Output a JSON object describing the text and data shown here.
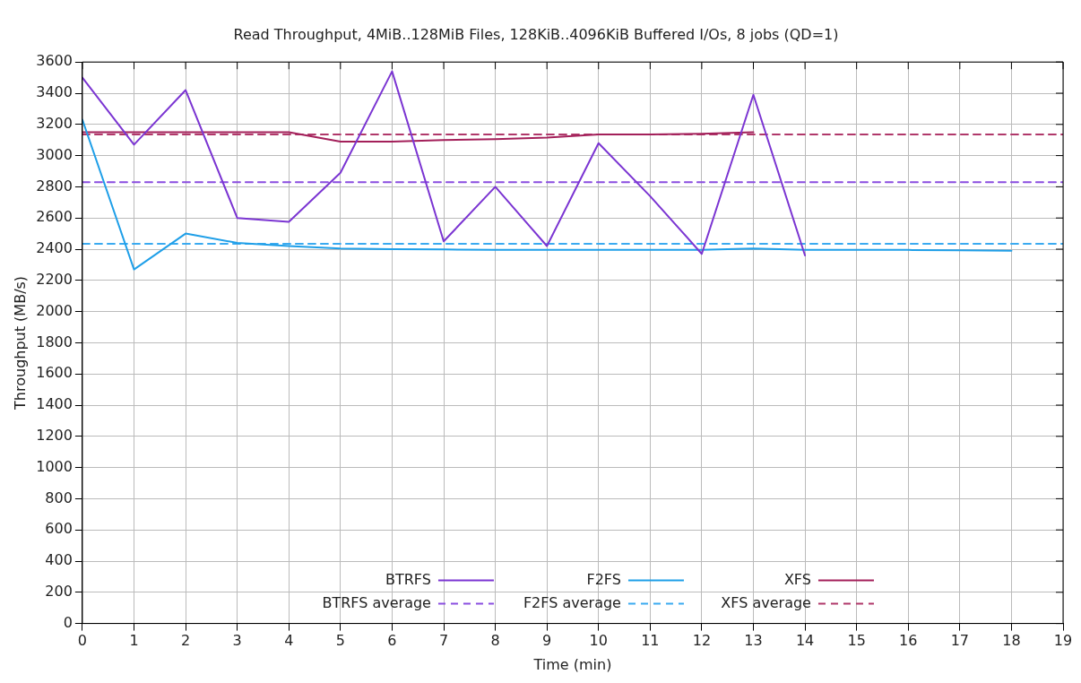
{
  "chart_data": {
    "type": "line",
    "title": "Read Throughput, 4MiB..128MiB Files, 128KiB..4096KiB Buffered I/Os, 8 jobs (QD=1)",
    "xlabel": "Time (min)",
    "ylabel": "Throughput (MB/s)",
    "xlim": [
      0,
      19
    ],
    "xticks": [
      0,
      1,
      2,
      3,
      4,
      5,
      6,
      7,
      8,
      9,
      10,
      11,
      12,
      13,
      14,
      15,
      16,
      17,
      18,
      19
    ],
    "ylim": [
      0,
      3600
    ],
    "yticks": [
      0,
      200,
      400,
      600,
      800,
      1000,
      1200,
      1400,
      1600,
      1800,
      2000,
      2200,
      2400,
      2600,
      2800,
      3000,
      3200,
      3400,
      3600
    ],
    "grid": true,
    "legend": "bottom",
    "marker": "none",
    "line_style": "solid",
    "series": [
      {
        "name": "BTRFS",
        "color": "#7b35d2",
        "x": [
          0,
          1,
          2,
          3,
          4,
          5,
          6,
          7,
          8,
          9,
          10,
          11,
          12,
          13,
          14
        ],
        "values": [
          3500,
          3070,
          3420,
          2600,
          2575,
          2890,
          3540,
          2450,
          2800,
          2420,
          3080,
          2740,
          2370,
          3390,
          2360
        ]
      },
      {
        "name": "BTRFS average",
        "color": "#8a4ee0",
        "line_style": "dashed",
        "x": [
          0,
          19
        ],
        "values": [
          2830,
          2830
        ]
      },
      {
        "name": "F2FS",
        "color": "#1f9fe8",
        "x": [
          0,
          1,
          2,
          3,
          4,
          5,
          6,
          7,
          8,
          9,
          10,
          11,
          12,
          13,
          14,
          15,
          16,
          17,
          18
        ],
        "values": [
          3230,
          2270,
          2500,
          2440,
          2420,
          2405,
          2400,
          2398,
          2396,
          2395,
          2395,
          2395,
          2395,
          2405,
          2395,
          2395,
          2395,
          2393,
          2390
        ]
      },
      {
        "name": "F2FS average",
        "color": "#3aaaf0",
        "line_style": "dashed",
        "x": [
          0,
          19
        ],
        "values": [
          2435,
          2435
        ]
      },
      {
        "name": "XFS",
        "color": "#a3205a",
        "x": [
          0,
          1,
          2,
          3,
          4,
          5,
          6,
          7,
          8,
          9,
          10,
          11,
          12,
          13
        ],
        "values": [
          3150,
          3150,
          3150,
          3150,
          3150,
          3090,
          3090,
          3100,
          3105,
          3115,
          3135,
          3135,
          3140,
          3150
        ]
      },
      {
        "name": "XFS average",
        "color": "#b0386a",
        "line_style": "dashed",
        "x": [
          0,
          19
        ],
        "values": [
          3135,
          3135
        ]
      }
    ]
  }
}
